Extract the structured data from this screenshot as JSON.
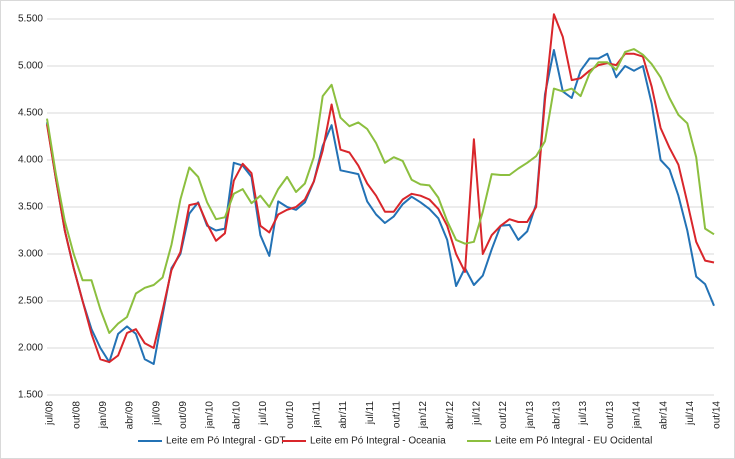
{
  "chart_data": {
    "type": "line",
    "categories": [
      "jul/08",
      null,
      null,
      "out/08",
      null,
      null,
      "jan/09",
      null,
      null,
      "abr/09",
      null,
      null,
      "jul/09",
      null,
      null,
      "out/09",
      null,
      null,
      "jan/10",
      null,
      null,
      "abr/10",
      null,
      null,
      "jul/10",
      null,
      null,
      "out/10",
      null,
      null,
      "jan/11",
      null,
      null,
      "abr/11",
      null,
      null,
      "jul/11",
      null,
      null,
      "out/11",
      null,
      null,
      "jan/12",
      null,
      null,
      "abr/12",
      null,
      null,
      "jul/12",
      null,
      null,
      "out/12",
      null,
      null,
      "jan/13",
      null,
      null,
      "abr/13",
      null,
      null,
      "jul/13",
      null,
      null,
      "out/13",
      null,
      null,
      "jan/14",
      null,
      null,
      "abr/14",
      null,
      null,
      "jul/14",
      null,
      null,
      "out/14"
    ],
    "series": [
      {
        "name": "Leite em Pó Integral - GDT",
        "color": "#2372b5",
        "values": [
          4400,
          3800,
          3250,
          2850,
          2500,
          2200,
          2000,
          1850,
          2150,
          2230,
          2150,
          1880,
          1830,
          2350,
          2850,
          3000,
          3430,
          3550,
          3300,
          3250,
          3270,
          3970,
          3940,
          3820,
          3200,
          2980,
          3560,
          3500,
          3470,
          3550,
          3770,
          4150,
          4370,
          3890,
          3870,
          3850,
          3560,
          3420,
          3330,
          3400,
          3530,
          3610,
          3550,
          3480,
          3380,
          3150,
          2660,
          2850,
          2670,
          2770,
          3050,
          3300,
          3310,
          3150,
          3240,
          3530,
          4700,
          5170,
          4730,
          4660,
          4950,
          5080,
          5080,
          5130,
          4880,
          5000,
          4950,
          5000,
          4600,
          4000,
          3900,
          3620,
          3250,
          2760,
          2680,
          2450
        ]
      },
      {
        "name": "Leite em Pó Integral - Oceania",
        "color": "#d9262b",
        "values": [
          4380,
          3800,
          3250,
          2850,
          2500,
          2150,
          1880,
          1850,
          1920,
          2160,
          2200,
          2050,
          2000,
          2400,
          2830,
          3020,
          3520,
          3540,
          3320,
          3140,
          3220,
          3780,
          3960,
          3860,
          3300,
          3230,
          3420,
          3470,
          3500,
          3580,
          3770,
          4100,
          4590,
          4110,
          4080,
          3940,
          3750,
          3620,
          3450,
          3450,
          3580,
          3640,
          3620,
          3580,
          3480,
          3300,
          3000,
          2810,
          4220,
          3000,
          3200,
          3300,
          3370,
          3340,
          3340,
          3500,
          4640,
          5550,
          5310,
          4850,
          4870,
          4950,
          5010,
          5030,
          5010,
          5130,
          5130,
          5100,
          4780,
          4340,
          4130,
          3950,
          3550,
          3130,
          2930,
          2910
        ]
      },
      {
        "name": "Leite em Pó Integral - EU Ocidental",
        "color": "#8cbf3f",
        "values": [
          4440,
          3850,
          3350,
          3000,
          2720,
          2720,
          2410,
          2160,
          2260,
          2330,
          2580,
          2640,
          2670,
          2750,
          3100,
          3580,
          3920,
          3820,
          3550,
          3370,
          3390,
          3640,
          3690,
          3540,
          3620,
          3500,
          3690,
          3820,
          3660,
          3750,
          4030,
          4680,
          4800,
          4450,
          4360,
          4400,
          4330,
          4180,
          3970,
          4030,
          3990,
          3790,
          3740,
          3730,
          3600,
          3350,
          3150,
          3110,
          3130,
          3450,
          3850,
          3840,
          3840,
          3910,
          3970,
          4040,
          4200,
          4760,
          4730,
          4760,
          4680,
          4920,
          5040,
          5040,
          4960,
          5150,
          5180,
          5120,
          5020,
          4880,
          4660,
          4480,
          4390,
          4030,
          3270,
          3210
        ]
      }
    ],
    "ylim": [
      1500,
      5500
    ],
    "yticks": [
      {
        "value": 1500,
        "label": "1.500"
      },
      {
        "value": 2000,
        "label": "2.000"
      },
      {
        "value": 2500,
        "label": "2.500"
      },
      {
        "value": 3000,
        "label": "3.000"
      },
      {
        "value": 3500,
        "label": "3.500"
      },
      {
        "value": 4000,
        "label": "4.000"
      },
      {
        "value": 4500,
        "label": "4.500"
      },
      {
        "value": 5000,
        "label": "5.000"
      },
      {
        "value": 5500,
        "label": "5.500"
      }
    ],
    "grid": true,
    "legend": "bottom"
  }
}
